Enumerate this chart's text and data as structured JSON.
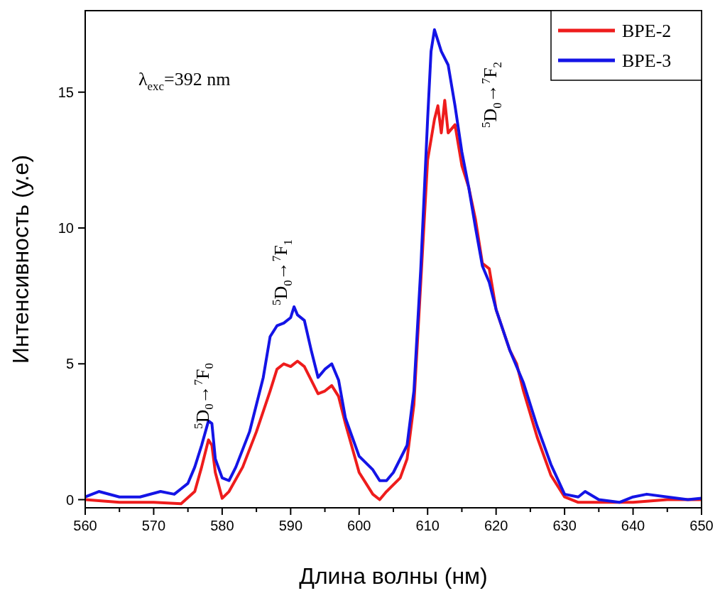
{
  "chart_data": {
    "type": "line",
    "xlabel": "Длина волны (нм)",
    "ylabel": "Интенсивность (у.е)",
    "xlim": [
      560,
      650
    ],
    "ylim": [
      -0.3,
      18
    ],
    "xticks": [
      560,
      {
        "value": 565,
        "label": null
      },
      570,
      {
        "value": 575,
        "label": null
      },
      580,
      {
        "value": 585,
        "label": null
      },
      590,
      {
        "value": 595,
        "label": null
      },
      600,
      {
        "value": 605,
        "label": null
      },
      610,
      {
        "value": 615,
        "label": null
      },
      620,
      {
        "value": 625,
        "label": null
      },
      630,
      {
        "value": 635,
        "label": null
      },
      640,
      {
        "value": 645,
        "label": null
      },
      650
    ],
    "yticks": [
      0,
      5,
      10,
      15
    ],
    "legend": "top right",
    "grid": false,
    "line_style": "solid",
    "marker": "none",
    "annotations": [
      "λ$_{exc}$=392 nm",
      {
        "text": "$^{5}$D$_{0}$→$^{7}$F$_{0}$",
        "x": 577.1,
        "y": 2.6
      },
      "$^{5}$D$_{0}$→$^{7}$F$_{1}$",
      "$^{5}$D$_{0}$→$^{7}$F$_{2}$"
    ],
    "series": [
      {
        "name": "BPE-2",
        "color": "#ee1c1c",
        "x": [
          560,
          565,
          570,
          574,
          576,
          577,
          578,
          578.5,
          579,
          580,
          581,
          583,
          585,
          587,
          588,
          589,
          590,
          591,
          592,
          593,
          594,
          595,
          596,
          597,
          598,
          600,
          602,
          603,
          604,
          606,
          607,
          608,
          609,
          610,
          611,
          611.5,
          612,
          612.5,
          613,
          614,
          615,
          616,
          617,
          618,
          619,
          620,
          622,
          623,
          624,
          626,
          628,
          630,
          632,
          635,
          640,
          645,
          650
        ],
        "values": [
          0,
          -0.1,
          -0.1,
          -0.15,
          0.3,
          1.2,
          2.2,
          2,
          1,
          0.05,
          0.3,
          1.2,
          2.5,
          4,
          4.8,
          5,
          4.9,
          5.1,
          4.9,
          4.4,
          3.9,
          4,
          4.2,
          3.8,
          2.8,
          1,
          0.2,
          0,
          0.3,
          0.8,
          1.5,
          3.5,
          8,
          12.5,
          14,
          14.5,
          13.5,
          14.7,
          13.5,
          13.8,
          12.3,
          11.5,
          10.3,
          8.7,
          8.5,
          7,
          5.5,
          5,
          4,
          2.3,
          0.9,
          0.1,
          -0.1,
          -0.1,
          -0.1,
          0,
          0
        ]
      },
      {
        "name": "BPE-3",
        "color": "#1414e6",
        "x": [
          560,
          562,
          565,
          568,
          571,
          573,
          575,
          576,
          577,
          578,
          578.5,
          579,
          580,
          581,
          582,
          584,
          586,
          587,
          588,
          589,
          590,
          590.5,
          591,
          592,
          593,
          594,
          595,
          596,
          597,
          598,
          600,
          602,
          603,
          604,
          605,
          607,
          608,
          609,
          610,
          610.5,
          611,
          612,
          613,
          614,
          615,
          616,
          617,
          618,
          619,
          620,
          622,
          624,
          626,
          628,
          630,
          632,
          633,
          635,
          638,
          640,
          642,
          645,
          648,
          650
        ],
        "values": [
          0.1,
          0.3,
          0.1,
          0.1,
          0.3,
          0.2,
          0.6,
          1.2,
          2,
          2.9,
          2.8,
          1.5,
          0.8,
          0.7,
          1.2,
          2.5,
          4.5,
          6,
          6.4,
          6.5,
          6.7,
          7.1,
          6.8,
          6.6,
          5.5,
          4.5,
          4.8,
          5,
          4.4,
          3,
          1.6,
          1.1,
          0.7,
          0.7,
          1,
          2,
          4,
          8.5,
          14,
          16.5,
          17.3,
          16.5,
          16,
          14.5,
          12.8,
          11.5,
          10,
          8.6,
          8,
          7,
          5.5,
          4.3,
          2.7,
          1.3,
          0.2,
          0.1,
          0.3,
          0,
          -0.1,
          0.1,
          0.2,
          0.1,
          0,
          0.05
        ]
      }
    ]
  }
}
